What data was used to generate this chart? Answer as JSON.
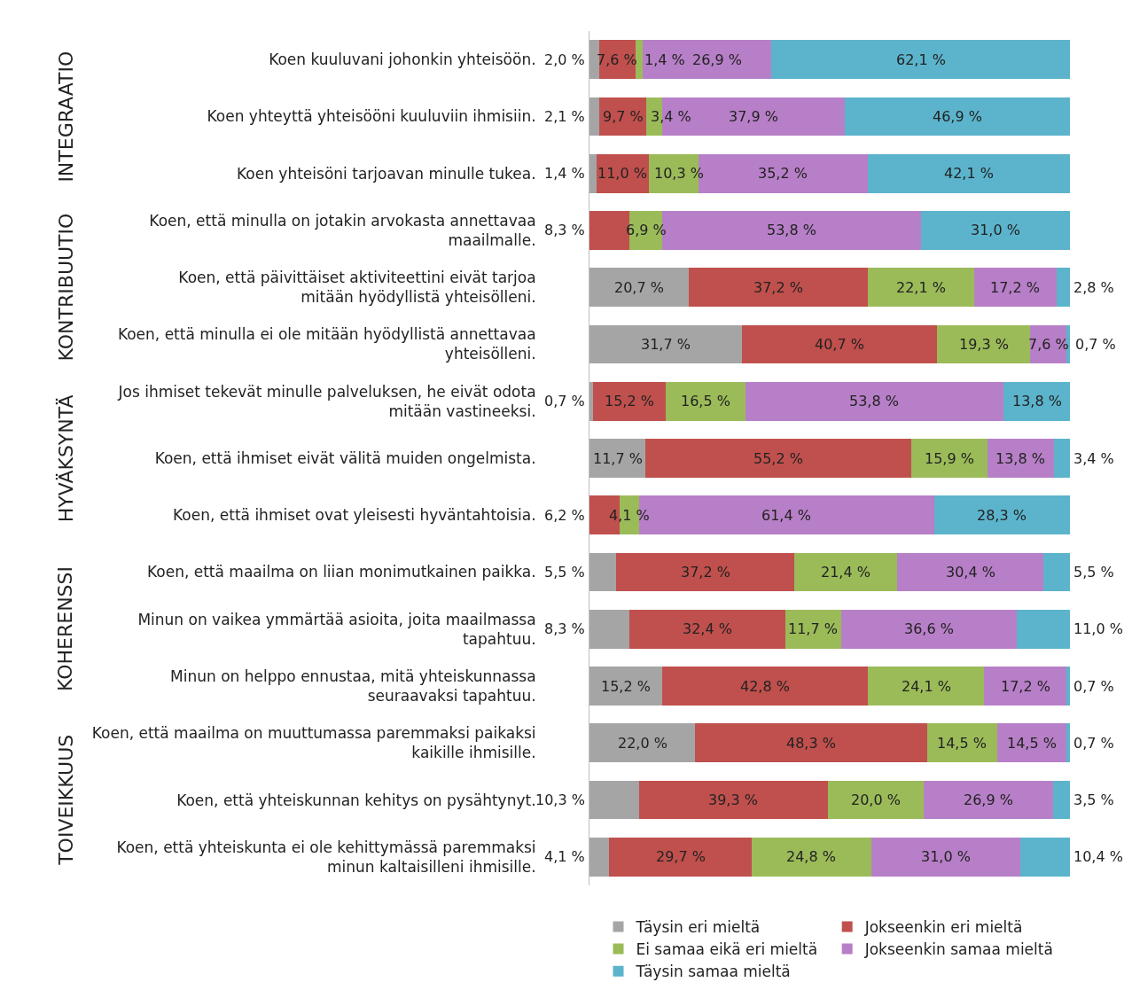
{
  "chart_data": {
    "type": "bar",
    "orientation": "horizontal",
    "stacked": true,
    "legend": "bottom",
    "tick_labels": "y",
    "grid": false,
    "annotations": [
      "INTEGRAATIO",
      "KONTRIBUUTIO",
      "HYVÄKSYNTÄ",
      "KOHERENSSI",
      "TOIVEIKKUUS"
    ],
    "categories": [
      "Koen kuuluvani johonkin yhteisöön.",
      "Koen yhteyttä yhteisööni kuuluviin ihmisiin.",
      "Koen yhteisöni tarjoavan minulle tukea.",
      "Koen, että minulla on jotakin arvokasta annettavaa maailmalle.",
      "Koen, että päivittäiset aktiviteettini eivät tarjoa mitään hyödyllistä yhteisölleni.",
      "Koen, että minulla ei ole mitään hyödyllistä annettavaa yhteisölleni.",
      "Jos ihmiset tekevät minulle palveluksen, he eivät odota mitään vastineeksi.",
      "Koen, että ihmiset eivät välitä muiden ongelmista.",
      "Koen, että ihmiset ovat yleisesti hyväntahtoisia.",
      "Koen, että maailma on liian monimutkainen paikka.",
      "Minun on vaikea ymmärtää asioita, joita maailmassa tapahtuu.",
      "Minun on helppo ennustaa, mitä yhteiskunnassa seuraavaksi tapahtuu.",
      "Koen, että maailma on muuttumassa paremmaksi paikaksi kaikille ihmisille.",
      "Koen, että yhteiskunnan kehitys on pysähtynyt.",
      "Koen, että yhteiskunta ei ole kehittymässä paremmaksi minun kaltaisilleni ihmisille."
    ],
    "series": [
      {
        "name": "Täysin eri mieltä",
        "color": "#a5a5a5",
        "values": [
          2.0,
          2.1,
          1.4,
          null,
          20.7,
          31.7,
          0.7,
          11.7,
          null,
          5.5,
          8.3,
          15.2,
          22.0,
          10.3,
          4.1
        ],
        "value_labels": [
          "2,0 %",
          "2,1 %",
          "1,4 %",
          null,
          "20,7 %",
          "31,7 %",
          "0,7 %",
          "11,7 %",
          null,
          "5,5 %",
          "8,3 %",
          "15,2 %",
          "22,0 %",
          "10,3 %",
          "4,1 %"
        ]
      },
      {
        "name": "Jokseenkin eri mieltä",
        "color": "#c0504d",
        "values": [
          7.6,
          9.7,
          11.0,
          8.3,
          37.2,
          40.7,
          15.2,
          55.2,
          6.2,
          37.2,
          32.4,
          42.8,
          48.3,
          39.3,
          29.7
        ],
        "value_labels": [
          "7,6 %",
          "9,7 %",
          "11,0 %",
          "8,3 %",
          "37,2 %",
          "40,7 %",
          "15,2 %",
          "55,2 %",
          "6,2 %",
          "37,2 %",
          "32,4 %",
          "42,8 %",
          "48,3 %",
          "39,3 %",
          "29,7 %"
        ]
      },
      {
        "name": "Ei samaa eikä eri mieltä",
        "color": "#9bbb59",
        "values": [
          1.4,
          3.4,
          10.3,
          6.9,
          22.1,
          19.3,
          16.5,
          15.9,
          4.1,
          21.4,
          11.7,
          24.1,
          14.5,
          20.0,
          24.8
        ],
        "value_labels": [
          "1,4 %",
          "3,4 %",
          "10,3 %",
          "6,9 %",
          "22,1 %",
          "19,3 %",
          "16,5 %",
          "15,9 %",
          "4,1 %",
          "21,4 %",
          "11,7 %",
          "24,1 %",
          "14,5 %",
          "20,0 %",
          "24,8 %"
        ]
      },
      {
        "name": "Jokseenkin samaa mieltä",
        "color": "#b77fc7",
        "values": [
          26.9,
          37.9,
          35.2,
          53.8,
          17.2,
          7.6,
          53.8,
          13.8,
          61.4,
          30.4,
          36.6,
          17.2,
          14.5,
          26.9,
          31.0
        ],
        "value_labels": [
          "26,9 %",
          "37,9 %",
          "35,2 %",
          "53,8 %",
          "17,2 %",
          "7,6 %",
          "53,8 %",
          "13,8 %",
          "61,4 %",
          "30,4 %",
          "36,6 %",
          "17,2 %",
          "14,5 %",
          "26,9 %",
          "31,0 %"
        ]
      },
      {
        "name": "Täysin samaa mieltä",
        "color": "#5bb4cc",
        "values": [
          62.1,
          46.9,
          42.1,
          31.0,
          2.8,
          0.7,
          13.8,
          3.4,
          28.3,
          5.5,
          11.0,
          0.7,
          0.7,
          3.5,
          10.4
        ],
        "value_labels": [
          "62,1 %",
          "46,9 %",
          "42,1 %",
          "31,0 %",
          "2,8 %",
          "0,7 %",
          "13,8 %",
          "3,4 %",
          "28,3 %",
          "5,5 %",
          "11,0 %",
          "0,7 %",
          "0,7 %",
          "3,5 %",
          "10,4 %"
        ]
      }
    ]
  }
}
